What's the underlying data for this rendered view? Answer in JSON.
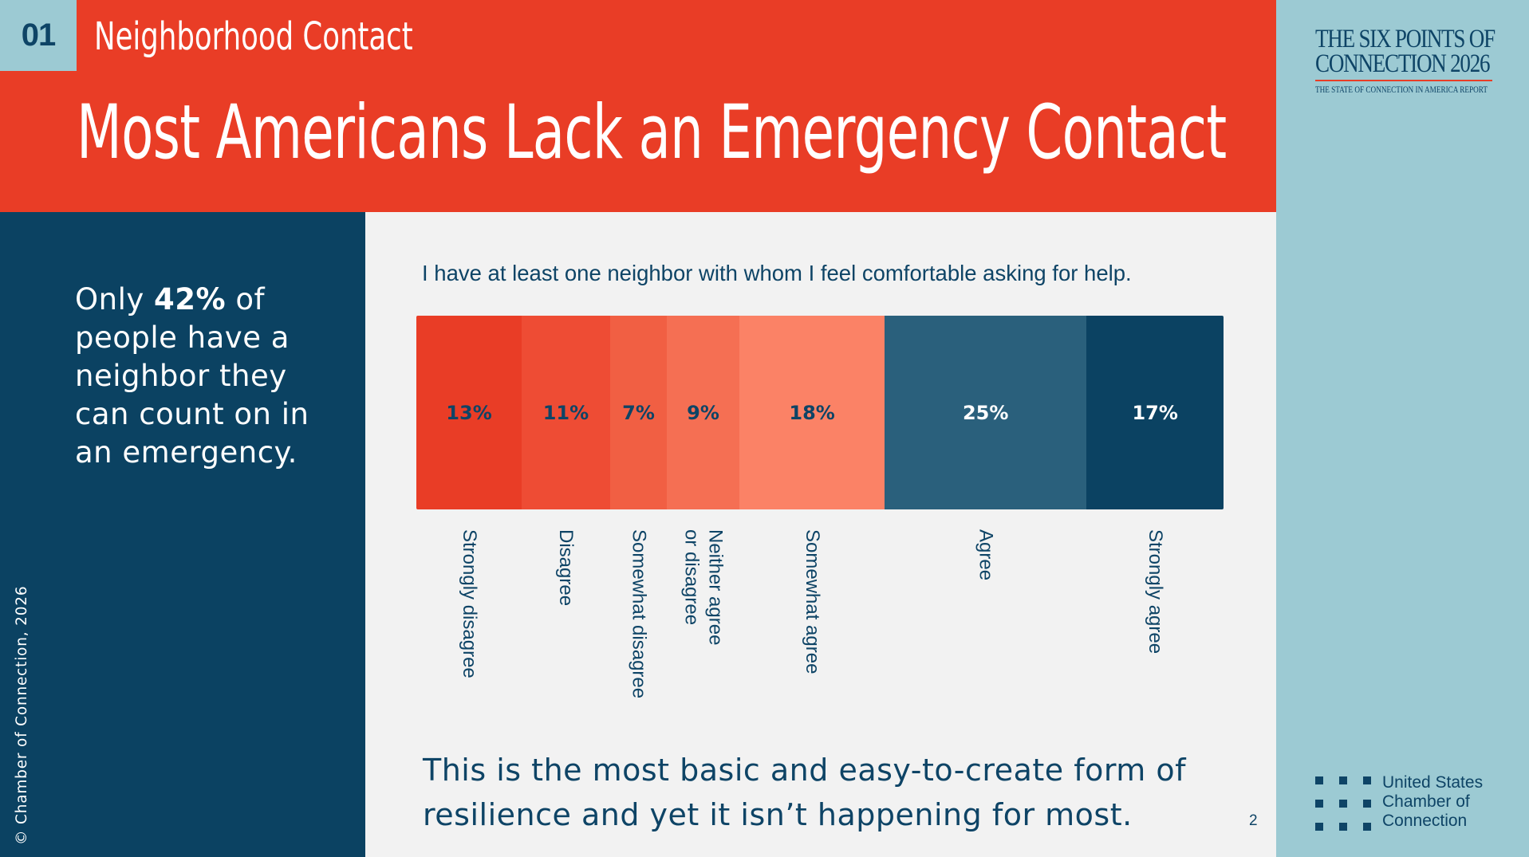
{
  "header": {
    "section_number": "01",
    "section_title": "Neighborhood Contact",
    "main_title": "Most Americans Lack an Emergency Contact"
  },
  "sidebar": {
    "text_prefix": "Only ",
    "text_highlight": "42%",
    "text_suffix": " of people have a neighbor they can count on in an emergency.",
    "copyright": "© Chamber of Connection, 2026"
  },
  "report": {
    "title_line1": "THE SIX POINTS OF",
    "title_line2": "CONNECTION 2026",
    "subtitle": "THE STATE OF CONNECTION IN AMERICA REPORT"
  },
  "logo": {
    "line1": "United States",
    "line2": "Chamber of",
    "line3": "Connection"
  },
  "colors": {
    "header_red": "#e93d26",
    "navy": "#0b4262",
    "light_blue": "#9ccad3"
  },
  "chart_data": {
    "type": "bar",
    "orientation": "stacked-horizontal",
    "title": "I have at least one neighbor with whom I feel comfortable asking for help.",
    "categories": [
      "Strongly disagree",
      "Disagree",
      "Somewhat disagree",
      "Neither agree\nor disagree",
      "Somewhat agree",
      "Agree",
      "Strongly agree"
    ],
    "values": [
      13,
      11,
      7,
      9,
      18,
      25,
      17
    ],
    "value_labels": [
      "13%",
      "11%",
      "7%",
      "9%",
      "18%",
      "25%",
      "17%"
    ],
    "colors": [
      "#e93d26",
      "#ee4c34",
      "#f15f43",
      "#f56f53",
      "#fb8266",
      "#2a607c",
      "#0b4262"
    ],
    "label_colors": [
      "#0e4466",
      "#0e4466",
      "#0e4466",
      "#0e4466",
      "#0e4466",
      "#ffffff",
      "#ffffff"
    ]
  },
  "footer": {
    "text": "This is the most basic and easy-to-create form of resilience and yet it isn’t happening for most.",
    "page_number": "2"
  }
}
